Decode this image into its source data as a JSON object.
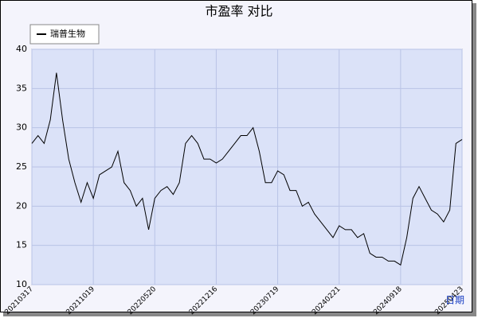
{
  "chart_data": {
    "type": "line",
    "title": "市盈率  对比",
    "x_label": "日期",
    "categories": [
      "20210317",
      null,
      null,
      null,
      null,
      null,
      null,
      null,
      null,
      null,
      "20211019",
      null,
      null,
      null,
      null,
      null,
      null,
      null,
      null,
      null,
      "20220520",
      null,
      null,
      null,
      null,
      null,
      null,
      null,
      null,
      null,
      "20221216",
      null,
      null,
      null,
      null,
      null,
      null,
      null,
      null,
      null,
      "20230719",
      null,
      null,
      null,
      null,
      null,
      null,
      null,
      null,
      null,
      "20240221",
      null,
      null,
      null,
      null,
      null,
      null,
      null,
      null,
      null,
      "20240918",
      null,
      null,
      null,
      null,
      null,
      null,
      null,
      null,
      null,
      "20250423"
    ],
    "series": [
      {
        "name": "瑞普生物",
        "color": "#000000",
        "values": [
          28,
          29,
          28,
          31,
          37,
          31,
          26,
          23,
          20.5,
          23,
          21,
          24,
          24.5,
          25,
          27,
          23,
          22,
          20,
          21,
          17,
          21,
          22,
          22.5,
          21.5,
          23,
          28,
          29,
          28,
          26,
          26,
          25.5,
          26,
          27,
          28,
          29,
          29,
          30,
          27,
          23,
          23,
          24.5,
          24,
          22,
          22,
          20,
          20.5,
          19,
          18,
          17,
          16,
          17.5,
          17,
          17,
          16,
          16.5,
          14,
          13.5,
          13.5,
          13,
          13,
          12.5,
          16,
          21,
          22.5,
          21,
          19.5,
          19,
          18,
          19.5,
          28,
          28.5
        ]
      }
    ],
    "ylim": [
      10,
      40
    ],
    "yticks": [
      10,
      15,
      20,
      25,
      30,
      35,
      40
    ],
    "grid": true,
    "legend": "top-left"
  }
}
